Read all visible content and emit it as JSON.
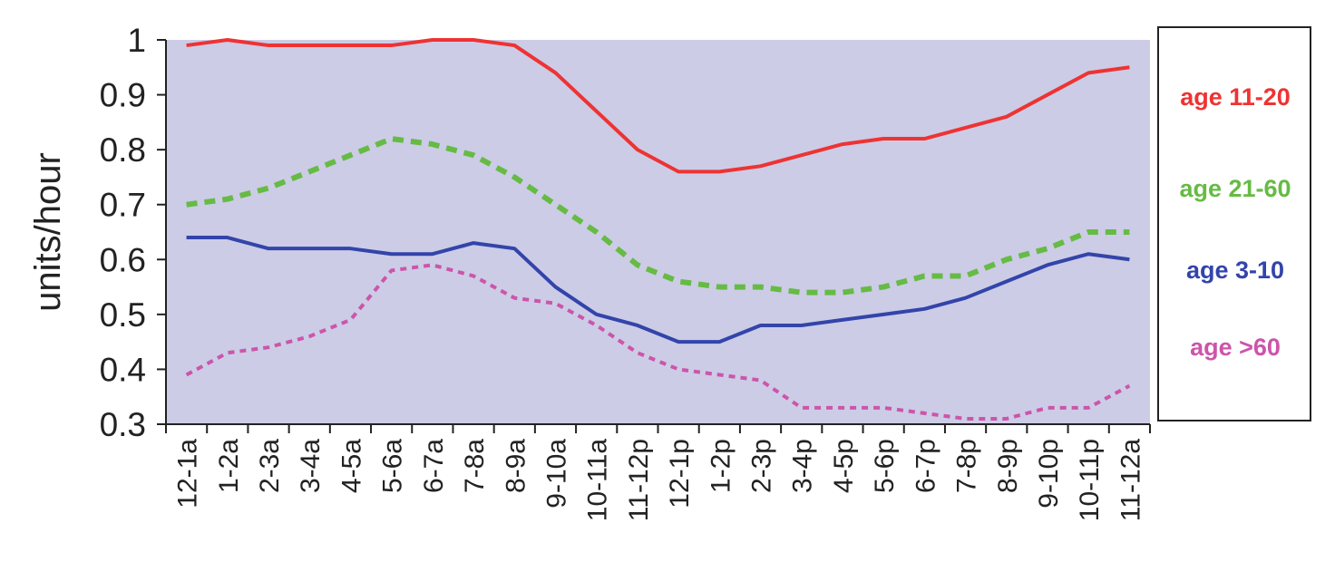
{
  "chart_data": {
    "type": "line",
    "ylabel": "units/hour",
    "xlabel": "",
    "ylim": [
      0.3,
      1
    ],
    "yticks": [
      "0.3",
      "0.4",
      "0.5",
      "0.6",
      "0.7",
      "0.8",
      "0.9",
      "1"
    ],
    "categories": [
      "12-1a",
      "1-2a",
      "2-3a",
      "3-4a",
      "4-5a",
      "5-6a",
      "6-7a",
      "7-8a",
      "8-9a",
      "9-10a",
      "10-11a",
      "11-12p",
      "12-1p",
      "1-2p",
      "2-3p",
      "3-4p",
      "4-5p",
      "5-6p",
      "6-7p",
      "7-8p",
      "8-9p",
      "9-10p",
      "10-11p",
      "11-12a"
    ],
    "legend_position": "right",
    "plot_background": "#cccce6",
    "series": [
      {
        "name": "age 11-20",
        "color": "#ee3333",
        "style": "solid",
        "values": [
          0.99,
          1.0,
          0.99,
          0.99,
          0.99,
          0.99,
          1.0,
          1.0,
          0.99,
          0.94,
          0.87,
          0.8,
          0.76,
          0.76,
          0.77,
          0.79,
          0.81,
          0.82,
          0.82,
          0.84,
          0.86,
          0.9,
          0.94,
          0.95
        ]
      },
      {
        "name": "age 21-60",
        "color": "#66bb44",
        "style": "dashed",
        "values": [
          0.7,
          0.71,
          0.73,
          0.76,
          0.79,
          0.82,
          0.81,
          0.79,
          0.75,
          0.7,
          0.65,
          0.59,
          0.56,
          0.55,
          0.55,
          0.54,
          0.54,
          0.55,
          0.57,
          0.57,
          0.6,
          0.62,
          0.65,
          0.65
        ]
      },
      {
        "name": "age 3-10",
        "color": "#3344aa",
        "style": "solid",
        "values": [
          0.64,
          0.64,
          0.62,
          0.62,
          0.62,
          0.61,
          0.61,
          0.63,
          0.62,
          0.55,
          0.5,
          0.48,
          0.45,
          0.45,
          0.48,
          0.48,
          0.49,
          0.5,
          0.51,
          0.53,
          0.56,
          0.59,
          0.61,
          0.6
        ]
      },
      {
        "name": "age >60",
        "color": "#cc55aa",
        "style": "dotted",
        "values": [
          0.39,
          0.43,
          0.44,
          0.46,
          0.49,
          0.58,
          0.59,
          0.57,
          0.53,
          0.52,
          0.48,
          0.43,
          0.4,
          0.39,
          0.38,
          0.33,
          0.33,
          0.33,
          0.32,
          0.31,
          0.31,
          0.33,
          0.33,
          0.37
        ]
      }
    ]
  }
}
